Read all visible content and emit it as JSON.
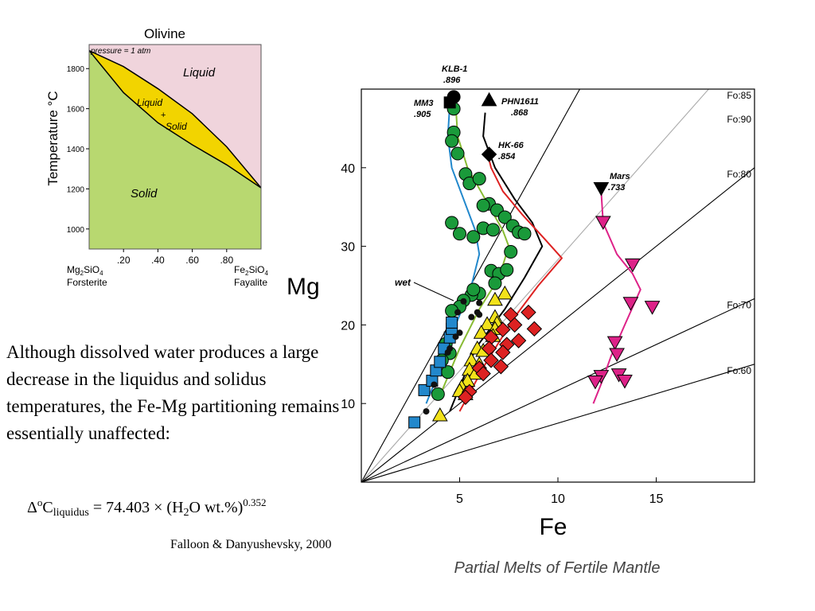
{
  "text": {
    "paragraph": "Although dissolved water produces a large decrease in the liquidus and solidus temperatures, the Fe-Mg partitioning remains essentially unaffected:",
    "equation": {
      "lhs_delta": "Δ",
      "lhs_sup": "o",
      "lhs_c": "C",
      "lhs_sub": "liquidus",
      "rhs_main": " = 74.403 × (H",
      "rhs_sub": "2",
      "rhs_tail": "O wt.%)",
      "rhs_sup": "0.352"
    },
    "citation": "Falloon & Danyushevsky, 2000"
  },
  "colors": {
    "liquid": "#f0d4dc",
    "solid": "#b8d870",
    "liquid_solid": "#f2d400",
    "blue": "#2288cc",
    "green": "#1a9a3a",
    "yellow": "#f2e21a",
    "red": "#dd2222",
    "magenta": "#dd2288",
    "black": "#111111",
    "gray_line": "#aaaaaa"
  },
  "chart_data": [
    {
      "type": "area",
      "title": "Olivine",
      "annotation": "pressure  = 1 atm",
      "ylabel": "Temperature °C",
      "xlim": [
        0,
        1
      ],
      "ylim": [
        900,
        1920
      ],
      "x_ticks": [
        ".20",
        ".40",
        ".60",
        ".80"
      ],
      "x_tick_values": [
        0.2,
        0.4,
        0.6,
        0.8
      ],
      "y_ticks": [
        1000,
        1200,
        1400,
        1600,
        1800
      ],
      "endmember_left": {
        "formula": "Mg",
        "sub1": "2",
        "mid": "SiO",
        "sub2": "4",
        "name": "Forsterite"
      },
      "endmember_right": {
        "formula": "Fe",
        "sub1": "2",
        "mid": "SiO",
        "sub2": "4",
        "name": "Fayalite"
      },
      "fields": {
        "liquid": "Liquid",
        "liquid_solid_1": "Liquid",
        "liquid_solid_plus": "+",
        "liquid_solid_2": "Solid",
        "solid": "Solid"
      },
      "liquidus": {
        "x": [
          0,
          0.2,
          0.4,
          0.6,
          0.8,
          1.0
        ],
        "y": [
          1890,
          1810,
          1700,
          1575,
          1410,
          1205
        ]
      },
      "solidus": {
        "x": [
          0,
          0.2,
          0.4,
          0.6,
          0.8,
          1.0
        ],
        "y": [
          1890,
          1680,
          1530,
          1420,
          1320,
          1205
        ]
      }
    },
    {
      "type": "scatter",
      "title": "Partial Melts of Fertile Mantle",
      "xlabel": "Fe",
      "ylabel": "Mg",
      "xlim": [
        0,
        20
      ],
      "ylim": [
        0,
        50
      ],
      "x_ticks": [
        5,
        10,
        15
      ],
      "y_ticks": [
        10,
        20,
        30,
        40
      ],
      "fo_lines": [
        {
          "name": "Fo:90",
          "slope": 4.5
        },
        {
          "name": "Fo:85",
          "slope": 2.83
        },
        {
          "name": "Fo:80",
          "slope": 2.0
        },
        {
          "name": "Fo:70",
          "slope": 1.167
        },
        {
          "name": "Fo:60",
          "slope": 0.75
        }
      ],
      "series": [
        {
          "name": "MM3",
          "marker": "square",
          "color": "blue",
          "label": {
            "name": "MM3",
            "value": ".905"
          },
          "start": [
            4.5,
            48.3
          ],
          "curve": [
            [
              4.5,
              48
            ],
            [
              4.4,
              44
            ],
            [
              4.6,
              40
            ],
            [
              5.2,
              36
            ],
            [
              5.8,
              32
            ],
            [
              6.0,
              29
            ],
            [
              5.6,
              25
            ],
            [
              4.8,
              20
            ],
            [
              4.1,
              15
            ],
            [
              3.3,
              10
            ]
          ],
          "points": [
            [
              2.7,
              7.6
            ],
            [
              3.2,
              11.7
            ],
            [
              3.6,
              12.9
            ],
            [
              3.8,
              14.2
            ],
            [
              4.0,
              15.3
            ],
            [
              4.2,
              17.0
            ],
            [
              4.5,
              18.4
            ],
            [
              4.6,
              19.5
            ],
            [
              4.6,
              20.3
            ]
          ]
        },
        {
          "name": "KLB-1",
          "marker": "circle",
          "color": "green",
          "label": {
            "name": "KLB-1",
            "value": ".896"
          },
          "start": [
            4.7,
            49.0
          ],
          "curve": [
            [
              4.8,
              48
            ],
            [
              4.9,
              44
            ],
            [
              5.4,
              40
            ],
            [
              6.3,
              36
            ],
            [
              7.2,
              32
            ],
            [
              7.5,
              30
            ],
            [
              7.0,
              26
            ],
            [
              6.0,
              22
            ],
            [
              5.0,
              17
            ],
            [
              4.0,
              11
            ]
          ],
          "points": [
            [
              4.7,
              47.5
            ],
            [
              4.7,
              44.5
            ],
            [
              4.6,
              43.4
            ],
            [
              4.9,
              41.8
            ],
            [
              5.3,
              39.2
            ],
            [
              5.5,
              38.0
            ],
            [
              6.0,
              38.6
            ],
            [
              6.5,
              35.4
            ],
            [
              6.2,
              35.2
            ],
            [
              6.9,
              34.6
            ],
            [
              4.6,
              33.0
            ],
            [
              7.3,
              33.7
            ],
            [
              5.0,
              31.6
            ],
            [
              5.7,
              31.2
            ],
            [
              6.2,
              32.3
            ],
            [
              6.7,
              32.1
            ],
            [
              7.7,
              32.6
            ],
            [
              8.0,
              31.8
            ],
            [
              8.3,
              31.6
            ],
            [
              7.6,
              29.3
            ],
            [
              6.6,
              26.9
            ],
            [
              7.0,
              26.5
            ],
            [
              7.4,
              27.0
            ],
            [
              6.8,
              25.3
            ],
            [
              6.0,
              24.0
            ],
            [
              5.6,
              23.8
            ],
            [
              5.7,
              24.5
            ],
            [
              5.2,
              23.1
            ],
            [
              5.0,
              22.3
            ],
            [
              4.6,
              21.8
            ],
            [
              4.3,
              17.6
            ],
            [
              4.5,
              16.4
            ],
            [
              4.1,
              15.5
            ],
            [
              4.4,
              14.0
            ],
            [
              3.9,
              11.2
            ]
          ]
        },
        {
          "name": "wet",
          "marker": "small-circle",
          "color": "black",
          "label": {
            "name": "wet"
          },
          "points": [
            [
              5.2,
              23.0
            ],
            [
              6.0,
              22.8
            ],
            [
              4.9,
              21.6
            ],
            [
              5.9,
              21.6
            ],
            [
              6.0,
              21.3
            ],
            [
              5.6,
              21.0
            ],
            [
              5.0,
              19.0
            ],
            [
              4.8,
              18.5
            ],
            [
              4.5,
              17.0
            ],
            [
              4.4,
              16.5
            ],
            [
              3.7,
              12.4
            ],
            [
              3.3,
              9.0
            ]
          ]
        },
        {
          "name": "PHN1611",
          "marker": "triangle",
          "color": "yellow",
          "label": {
            "name": "PHN1611",
            "value": ".868"
          },
          "start": [
            6.5,
            48.6
          ],
          "curve": [
            [
              6.3,
              47
            ],
            [
              6.2,
              44
            ],
            [
              6.8,
              40
            ],
            [
              7.8,
              36
            ],
            [
              8.7,
              33
            ],
            [
              9.2,
              30
            ],
            [
              8.3,
              26
            ],
            [
              7.3,
              22
            ],
            [
              5.8,
              17
            ],
            [
              4.5,
              9
            ]
          ],
          "points": [
            [
              7.3,
              24.0
            ],
            [
              6.8,
              23.2
            ],
            [
              6.8,
              21.0
            ],
            [
              6.9,
              20.2
            ],
            [
              6.4,
              20.1
            ],
            [
              6.8,
              19.5
            ],
            [
              6.1,
              19.0
            ],
            [
              6.7,
              18.6
            ],
            [
              5.9,
              17.0
            ],
            [
              6.2,
              16.7
            ],
            [
              5.6,
              15.5
            ],
            [
              6.0,
              15.0
            ],
            [
              5.5,
              14.3
            ],
            [
              5.8,
              13.8
            ],
            [
              5.4,
              12.9
            ],
            [
              5.1,
              12.1
            ],
            [
              5.0,
              11.6
            ],
            [
              5.3,
              11.2
            ],
            [
              4.0,
              8.5
            ]
          ]
        },
        {
          "name": "HK-66",
          "marker": "diamond",
          "color": "red",
          "label": {
            "name": "HK-66",
            "value": ".854"
          },
          "start": [
            6.5,
            41.7
          ],
          "curve": [
            [
              6.5,
              41
            ],
            [
              6.6,
              40
            ],
            [
              7.2,
              37
            ],
            [
              8.2,
              34
            ],
            [
              9.3,
              31
            ],
            [
              10.2,
              28.5
            ],
            [
              9.0,
              25
            ],
            [
              7.8,
              21
            ],
            [
              6.3,
              15
            ],
            [
              5.0,
              9
            ]
          ],
          "points": [
            [
              8.5,
              21.6
            ],
            [
              7.6,
              21.3
            ],
            [
              7.8,
              20.0
            ],
            [
              8.8,
              19.5
            ],
            [
              7.2,
              19.4
            ],
            [
              6.6,
              18.4
            ],
            [
              7.4,
              17.5
            ],
            [
              8.0,
              18.0
            ],
            [
              6.5,
              17.0
            ],
            [
              7.2,
              16.5
            ],
            [
              6.6,
              15.5
            ],
            [
              6.0,
              14.5
            ],
            [
              7.1,
              14.7
            ],
            [
              6.2,
              13.8
            ],
            [
              5.5,
              11.5
            ],
            [
              5.3,
              10.8
            ]
          ]
        },
        {
          "name": "Mars",
          "marker": "inverted-triangle",
          "color": "magenta",
          "label": {
            "name": "Mars",
            "value": ".733"
          },
          "start": [
            12.2,
            37.4
          ],
          "curve": [
            [
              12.2,
              37
            ],
            [
              12.3,
              33
            ],
            [
              13.0,
              29
            ],
            [
              13.8,
              26.5
            ],
            [
              14.2,
              24.5
            ],
            [
              13.4,
              20
            ],
            [
              12.7,
              16
            ],
            [
              12.2,
              12.5
            ],
            [
              11.8,
              10
            ]
          ],
          "points": [
            [
              12.3,
              33.1
            ],
            [
              13.8,
              27.7
            ],
            [
              13.7,
              22.8
            ],
            [
              14.8,
              22.3
            ],
            [
              12.9,
              17.8
            ],
            [
              13.0,
              16.3
            ],
            [
              12.2,
              13.5
            ],
            [
              11.9,
              12.8
            ],
            [
              13.1,
              13.7
            ],
            [
              13.4,
              12.9
            ]
          ]
        }
      ]
    }
  ]
}
